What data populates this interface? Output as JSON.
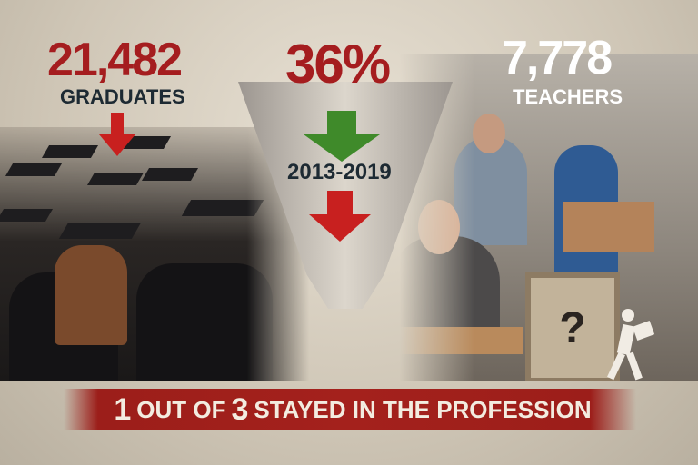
{
  "graduates": {
    "number": "21,482",
    "label": "GRADUATES"
  },
  "funnel": {
    "percent": "36%",
    "period": "2013-2019"
  },
  "teachers": {
    "number": "7,778",
    "label": "TEACHERS"
  },
  "banner": {
    "n1": "1",
    "mid": "OUT OF",
    "n2": "3",
    "rest": "STAYED IN THE PROFESSION"
  },
  "door_symbol": "?",
  "colors": {
    "accent_red": "#a51d1f",
    "green": "#3f8a2a",
    "banner": "#a4211c"
  }
}
